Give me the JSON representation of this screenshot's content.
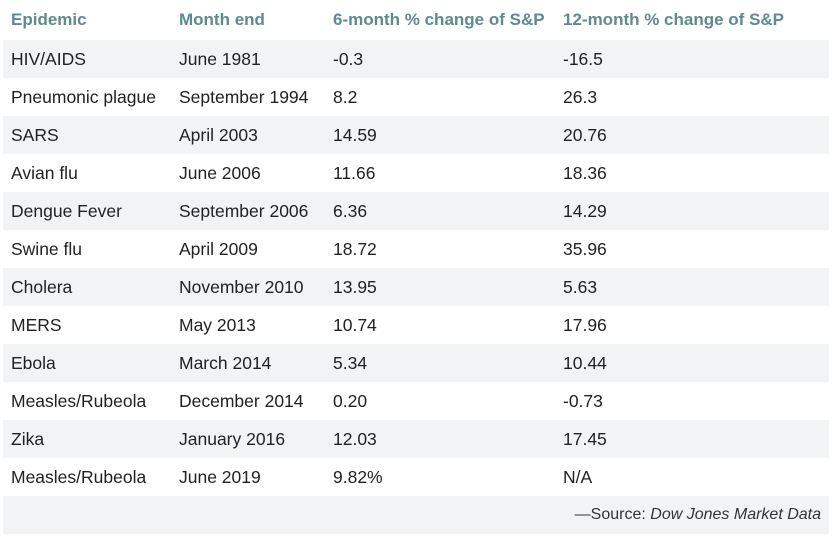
{
  "table": {
    "headers": [
      "Epidemic",
      "Month end",
      "6-month % change of S&P",
      "12-month % change of S&P"
    ],
    "rows": [
      [
        "HIV/AIDS",
        "June 1981",
        "-0.3",
        "-16.5"
      ],
      [
        "Pneumonic plague",
        "September 1994",
        "8.2",
        "26.3"
      ],
      [
        "SARS",
        "April 2003",
        "14.59",
        "20.76"
      ],
      [
        "Avian flu",
        "June 2006",
        "11.66",
        "18.36"
      ],
      [
        "Dengue Fever",
        "September 2006",
        "6.36",
        "14.29"
      ],
      [
        "Swine flu",
        "April 2009",
        "18.72",
        "35.96"
      ],
      [
        "Cholera",
        "November 2010",
        "13.95",
        "5.63"
      ],
      [
        "MERS",
        "May 2013",
        "10.74",
        "17.96"
      ],
      [
        "Ebola",
        "March 2014",
        "5.34",
        "10.44"
      ],
      [
        "Measles/Rubeola",
        "December 2014",
        "0.20",
        "-0.73"
      ],
      [
        "Zika",
        "January 2016",
        "12.03",
        "17.45"
      ],
      [
        "Measles/Rubeola",
        "June 2019",
        "9.82%",
        "N/A"
      ]
    ]
  },
  "source": {
    "prefix": "—Source: ",
    "name": "Dow Jones Market Data"
  },
  "colors": {
    "header_text": "#5f8a8f",
    "stripe": "#f1f3f4",
    "body_text": "#222222"
  }
}
